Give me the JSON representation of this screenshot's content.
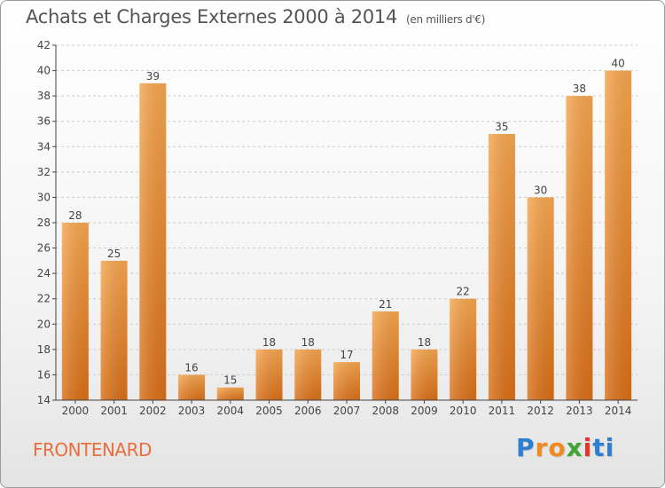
{
  "title": "Achats et Charges Externes 2000 à 2014",
  "unit": "(en milliers d'€)",
  "commune": "FRONTENARD",
  "logo": {
    "letters": [
      "P",
      "r",
      "o",
      "x",
      "i",
      "t",
      "i"
    ],
    "colors": [
      "#2e7fd0",
      "#f08a1c",
      "#f08a1c",
      "#3fa535",
      "#e8352a",
      "#2e7fd0",
      "#2e7fd0"
    ]
  },
  "colors": {
    "bar_light": "#f6a64f",
    "bar_dark": "#d96f18",
    "axis": "#444444",
    "grid": "#cccccc"
  },
  "chart_data": {
    "type": "bar",
    "title": "Achats et Charges Externes 2000 à 2014",
    "subtitle": "(en milliers d'€)",
    "categories": [
      "2000",
      "2001",
      "2002",
      "2003",
      "2004",
      "2005",
      "2006",
      "2007",
      "2008",
      "2009",
      "2010",
      "2011",
      "2012",
      "2013",
      "2014"
    ],
    "values": [
      28,
      25,
      39,
      16,
      15,
      18,
      18,
      17,
      21,
      18,
      22,
      35,
      30,
      38,
      40
    ],
    "ylim": [
      14,
      42
    ],
    "yticks": [
      14,
      16,
      18,
      20,
      22,
      24,
      26,
      28,
      30,
      32,
      34,
      36,
      38,
      40,
      42
    ],
    "grid": true,
    "data_labels": true
  }
}
